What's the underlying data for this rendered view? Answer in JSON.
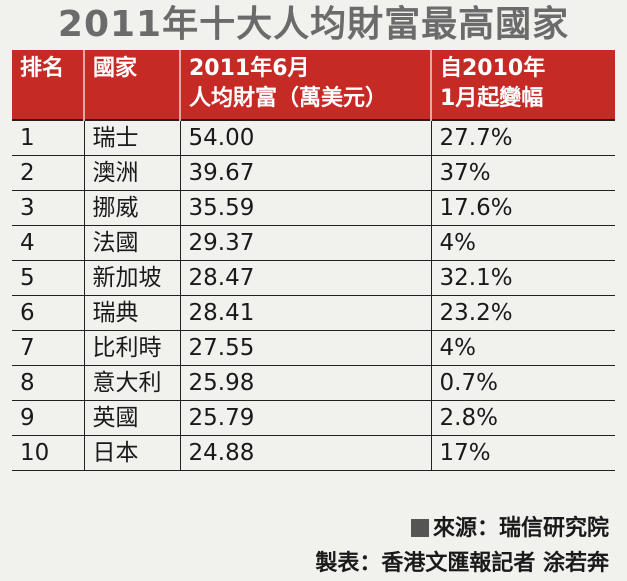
{
  "chart_data": {
    "type": "table",
    "title": "2011年十大人均財富最高國家",
    "columns": [
      [
        "排名"
      ],
      [
        "國家"
      ],
      [
        "2011年6月",
        "人均財富（萬美元）"
      ],
      [
        "自2010年",
        "1月起變幅"
      ]
    ],
    "rows": [
      {
        "rank": "1",
        "country": "瑞士",
        "wealth": "54.00",
        "change": "27.7%"
      },
      {
        "rank": "2",
        "country": "澳洲",
        "wealth": "39.67",
        "change": "37%"
      },
      {
        "rank": "3",
        "country": "挪威",
        "wealth": "35.59",
        "change": "17.6%"
      },
      {
        "rank": "4",
        "country": "法國",
        "wealth": "29.37",
        "change": "4%"
      },
      {
        "rank": "5",
        "country": "新加坡",
        "wealth": "28.47",
        "change": "32.1%"
      },
      {
        "rank": "6",
        "country": "瑞典",
        "wealth": "28.41",
        "change": "23.2%"
      },
      {
        "rank": "7",
        "country": "比利時",
        "wealth": "27.55",
        "change": "4%"
      },
      {
        "rank": "8",
        "country": "意大利",
        "wealth": "25.98",
        "change": "0.7%"
      },
      {
        "rank": "9",
        "country": "英國",
        "wealth": "25.79",
        "change": "2.8%"
      },
      {
        "rank": "10",
        "country": "日本",
        "wealth": "24.88",
        "change": "17%"
      }
    ],
    "source": "來源：瑞信研究院",
    "credit": "製表：香港文匯報記者 涂若奔"
  }
}
